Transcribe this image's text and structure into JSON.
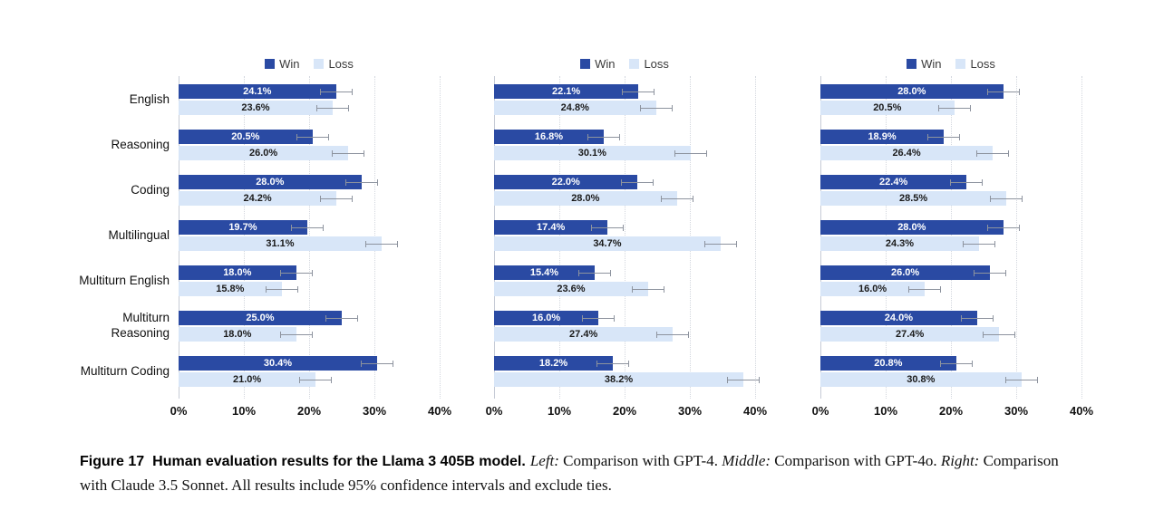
{
  "chart_data": [
    {
      "type": "bar",
      "orientation": "horizontal",
      "comparison": "GPT-4",
      "categories": [
        "English",
        "Reasoning",
        "Coding",
        "Multilingual",
        "Multiturn English",
        "Multiturn Reasoning",
        "Multiturn Coding"
      ],
      "series": [
        {
          "name": "Win",
          "color": "#2a4aa3",
          "values": [
            24.1,
            20.5,
            28.0,
            19.7,
            18.0,
            25.0,
            30.4
          ]
        },
        {
          "name": "Loss",
          "color": "#d8e6f8",
          "values": [
            23.6,
            26.0,
            24.2,
            31.1,
            15.8,
            18.0,
            21.0
          ]
        }
      ],
      "xlim": [
        0,
        40
      ],
      "xticks": [
        "0%",
        "10%",
        "20%",
        "30%",
        "40%"
      ],
      "error_bars": "95% confidence intervals",
      "ci_approx": 2.5,
      "grid": "dotted-vertical",
      "legend_position": "top-center"
    },
    {
      "type": "bar",
      "orientation": "horizontal",
      "comparison": "GPT-4o",
      "categories": [
        "English",
        "Reasoning",
        "Coding",
        "Multilingual",
        "Multiturn English",
        "Multiturn Reasoning",
        "Multiturn Coding"
      ],
      "series": [
        {
          "name": "Win",
          "color": "#2a4aa3",
          "values": [
            22.1,
            16.8,
            22.0,
            17.4,
            15.4,
            16.0,
            18.2
          ]
        },
        {
          "name": "Loss",
          "color": "#d8e6f8",
          "values": [
            24.8,
            30.1,
            28.0,
            34.7,
            23.6,
            27.4,
            38.2
          ]
        }
      ],
      "xlim": [
        0,
        40
      ],
      "xticks": [
        "0%",
        "10%",
        "20%",
        "30%",
        "40%"
      ],
      "error_bars": "95% confidence intervals",
      "ci_approx": 2.5,
      "grid": "dotted-vertical",
      "legend_position": "top-center"
    },
    {
      "type": "bar",
      "orientation": "horizontal",
      "comparison": "Claude 3.5 Sonnet",
      "categories": [
        "English",
        "Reasoning",
        "Coding",
        "Multilingual",
        "Multiturn English",
        "Multiturn Reasoning",
        "Multiturn Coding"
      ],
      "series": [
        {
          "name": "Win",
          "color": "#2a4aa3",
          "values": [
            28.0,
            18.9,
            22.4,
            28.0,
            26.0,
            24.0,
            20.8
          ]
        },
        {
          "name": "Loss",
          "color": "#d8e6f8",
          "values": [
            20.5,
            26.4,
            28.5,
            24.3,
            16.0,
            27.4,
            30.8
          ]
        }
      ],
      "xlim": [
        0,
        40
      ],
      "xticks": [
        "0%",
        "10%",
        "20%",
        "30%",
        "40%"
      ],
      "error_bars": "95% confidence intervals",
      "ci_approx": 2.5,
      "grid": "dotted-vertical",
      "legend_position": "top-center"
    }
  ],
  "caption": {
    "label": "Figure 17",
    "title": "Human evaluation results for the Llama 3 405B model.",
    "segments": [
      {
        "text": "Left:",
        "style": "italic"
      },
      {
        "text": " Comparison with GPT-4. ",
        "style": "normal"
      },
      {
        "text": "Middle:",
        "style": "italic"
      },
      {
        "text": " Comparison with GPT-4o. ",
        "style": "normal"
      },
      {
        "text": "Right:",
        "style": "italic"
      },
      {
        "text": " Comparison with Claude 3.5 Sonnet. All results include 95% confidence intervals and exclude ties.",
        "style": "normal"
      }
    ]
  }
}
